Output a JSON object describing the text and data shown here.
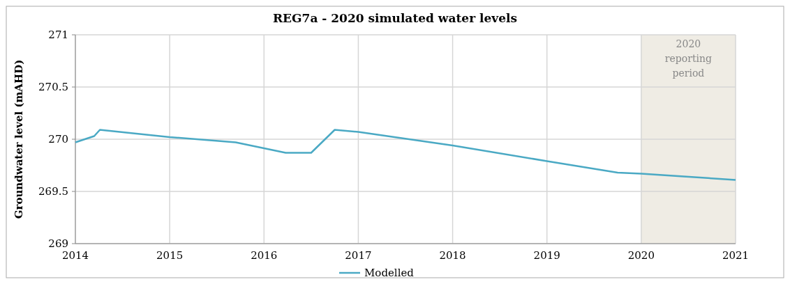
{
  "chart_data": {
    "type": "line",
    "title": "REG7a - 2020 simulated water levels",
    "ylabel": "Groundwater level (mAHD)",
    "series": [
      {
        "name": "Modelled",
        "color": "#4aa9c4",
        "x": [
          2014,
          2014.2,
          2014.26,
          2015,
          2015.7,
          2016.23,
          2016.5,
          2016.75,
          2017,
          2018,
          2019,
          2019.75,
          2020,
          2021
        ],
        "values": [
          269.97,
          270.03,
          270.09,
          270.02,
          269.97,
          269.87,
          269.87,
          270.09,
          270.07,
          269.94,
          269.79,
          269.68,
          269.67,
          269.61
        ]
      }
    ],
    "xlim": [
      2014,
      2021
    ],
    "xticks": [
      2014,
      2015,
      2016,
      2017,
      2018,
      2019,
      2020,
      2021
    ],
    "ylim": [
      269,
      271
    ],
    "yticks": [
      269,
      269.5,
      270,
      270.5,
      271
    ],
    "bands": [
      {
        "axis": "x",
        "from": 2020,
        "to": 2021,
        "label": "2020 reporting period",
        "color": "#efece4"
      }
    ],
    "grid": true,
    "legend": "bottom",
    "line_style": "solid",
    "marker": "none"
  }
}
